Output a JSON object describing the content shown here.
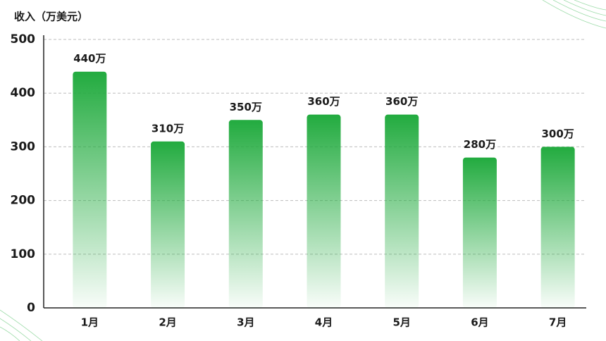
{
  "chart_data": {
    "type": "bar",
    "ylabel": "收入（万美元）",
    "categories": [
      "1月",
      "2月",
      "3月",
      "4月",
      "5月",
      "6月",
      "7月"
    ],
    "values": [
      440,
      310,
      350,
      360,
      360,
      280,
      300
    ],
    "value_labels": [
      "440万",
      "310万",
      "350万",
      "360万",
      "360万",
      "280万",
      "300万"
    ],
    "color": "#22ab3f",
    "ylim": [
      0,
      500
    ],
    "yticks": [
      0,
      100,
      200,
      300,
      400,
      500
    ],
    "grid": true
  }
}
